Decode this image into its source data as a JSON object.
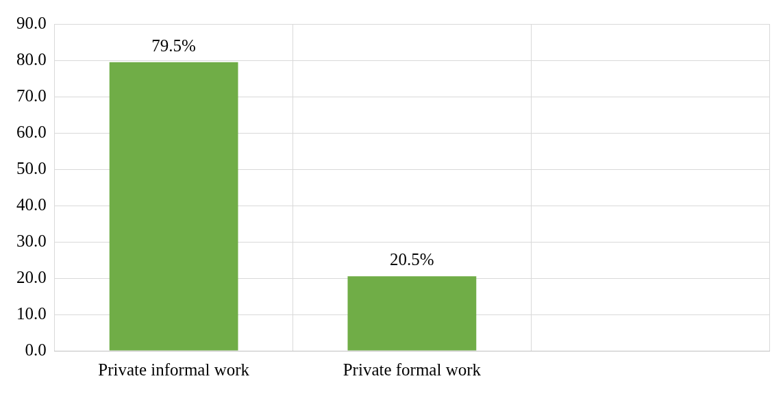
{
  "chart_data": {
    "type": "bar",
    "categories": [
      "Private informal work",
      "Private formal work",
      null
    ],
    "values": [
      79.5,
      20.5,
      null
    ],
    "value_labels": [
      "79.5%",
      "20.5%",
      null
    ],
    "color": "#70ad47",
    "ylim": [
      0,
      90
    ],
    "yticks": [
      {
        "value": 0,
        "label": "0.0"
      },
      {
        "value": 10,
        "label": "10.0"
      },
      {
        "value": 20,
        "label": "20.0"
      },
      {
        "value": 30,
        "label": "30.0"
      },
      {
        "value": 40,
        "label": "40.0"
      },
      {
        "value": 50,
        "label": "50.0"
      },
      {
        "value": 60,
        "label": "60.0"
      },
      {
        "value": 70,
        "label": "70.0"
      },
      {
        "value": 80,
        "label": "80.0"
      },
      {
        "value": 90,
        "label": "90.0"
      }
    ],
    "grid": true,
    "legend": false
  }
}
